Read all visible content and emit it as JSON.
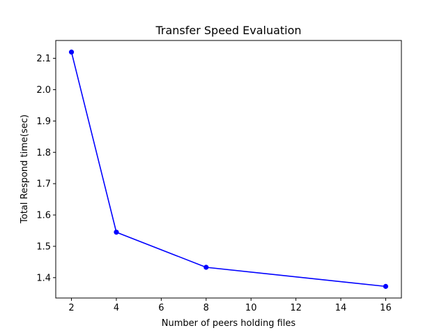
{
  "chart_data": {
    "type": "line",
    "title": "Transfer Speed Evaluation",
    "xlabel": "Number of peers holding files",
    "ylabel": "Total Respond time(sec)",
    "xlim": [
      1.3,
      16.7
    ],
    "ylim": [
      1.335,
      2.157
    ],
    "xticks": [
      2,
      4,
      6,
      8,
      10,
      12,
      14,
      16
    ],
    "yticks": [
      1.4,
      1.5,
      1.6,
      1.7,
      1.8,
      1.9,
      2.0,
      2.1
    ],
    "xtick_labels": [
      "2",
      "4",
      "6",
      "8",
      "10",
      "12",
      "14",
      "16"
    ],
    "ytick_labels": [
      "1.4",
      "1.5",
      "1.6",
      "1.7",
      "1.8",
      "1.9",
      "2.0",
      "2.1"
    ],
    "grid": false,
    "legend": "none",
    "series": [
      {
        "color": "#0000ff",
        "marker": "circle",
        "x": [
          2,
          4,
          8,
          16
        ],
        "y": [
          2.12,
          1.545,
          1.433,
          1.372
        ]
      }
    ]
  }
}
